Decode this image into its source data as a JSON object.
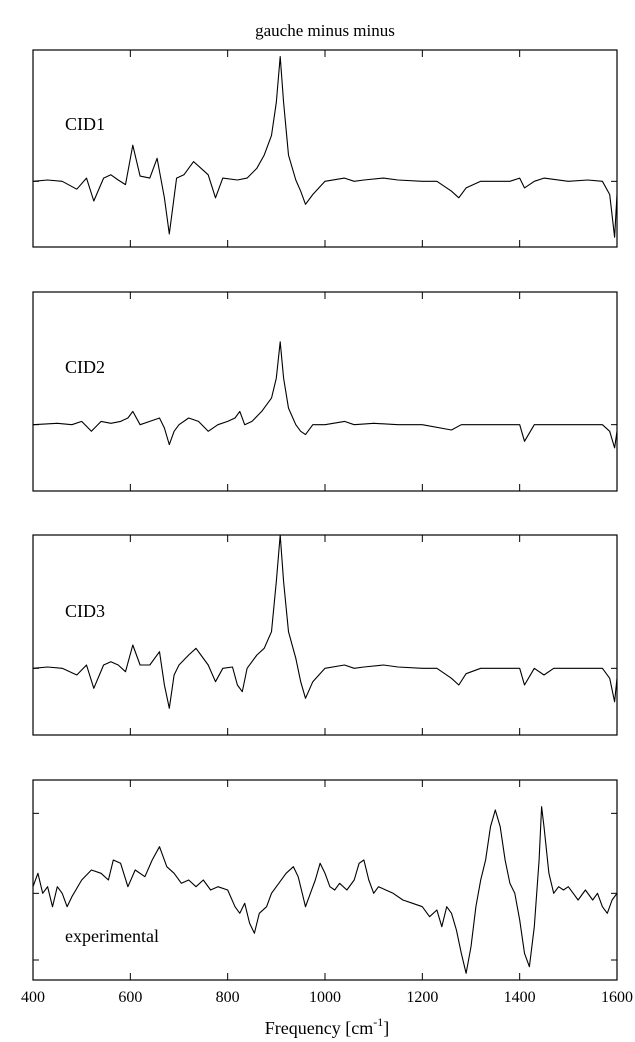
{
  "chart_data": {
    "type": "line",
    "title": "gauche minus minus",
    "xlabel": "Frequency [cm",
    "xlabel_sup": "-1",
    "xlabel_end": "]",
    "xlim": [
      400,
      1600
    ],
    "x_ticks": [
      "400",
      "600",
      "800",
      "1000",
      "1200",
      "1400",
      "1600"
    ],
    "x_tick_values": [
      400,
      600,
      800,
      1000,
      1200,
      1400,
      1600
    ],
    "panels": [
      {
        "label": "CID1",
        "ylim": [
          -1.0,
          2.0
        ],
        "baseline": 0,
        "points": [
          [
            400,
            0
          ],
          [
            430,
            0.02
          ],
          [
            460,
            0
          ],
          [
            490,
            -0.12
          ],
          [
            510,
            0.05
          ],
          [
            525,
            -0.3
          ],
          [
            545,
            0.05
          ],
          [
            560,
            0.1
          ],
          [
            575,
            0.02
          ],
          [
            590,
            -0.05
          ],
          [
            605,
            0.55
          ],
          [
            620,
            0.08
          ],
          [
            640,
            0.05
          ],
          [
            655,
            0.35
          ],
          [
            670,
            -0.25
          ],
          [
            680,
            -0.8
          ],
          [
            695,
            0.05
          ],
          [
            710,
            0.1
          ],
          [
            730,
            0.3
          ],
          [
            745,
            0.2
          ],
          [
            760,
            0.1
          ],
          [
            775,
            -0.25
          ],
          [
            790,
            0.05
          ],
          [
            820,
            0.02
          ],
          [
            840,
            0.05
          ],
          [
            860,
            0.2
          ],
          [
            875,
            0.4
          ],
          [
            890,
            0.7
          ],
          [
            900,
            1.2
          ],
          [
            908,
            1.9
          ],
          [
            915,
            1.2
          ],
          [
            925,
            0.4
          ],
          [
            940,
            0.02
          ],
          [
            950,
            -0.15
          ],
          [
            960,
            -0.35
          ],
          [
            975,
            -0.2
          ],
          [
            1000,
            0
          ],
          [
            1040,
            0.05
          ],
          [
            1060,
            0
          ],
          [
            1080,
            0.02
          ],
          [
            1120,
            0.05
          ],
          [
            1150,
            0.02
          ],
          [
            1200,
            0
          ],
          [
            1230,
            0
          ],
          [
            1260,
            -0.15
          ],
          [
            1275,
            -0.25
          ],
          [
            1290,
            -0.1
          ],
          [
            1320,
            0
          ],
          [
            1350,
            0
          ],
          [
            1380,
            0
          ],
          [
            1400,
            0.05
          ],
          [
            1410,
            -0.1
          ],
          [
            1430,
            0
          ],
          [
            1450,
            0.05
          ],
          [
            1500,
            0
          ],
          [
            1540,
            0.02
          ],
          [
            1570,
            0
          ],
          [
            1585,
            -0.2
          ],
          [
            1595,
            -0.85
          ],
          [
            1600,
            -0.2
          ]
        ]
      },
      {
        "label": "CID2",
        "ylim": [
          -1.0,
          2.0
        ],
        "baseline": 0,
        "points": [
          [
            400,
            0
          ],
          [
            450,
            0.02
          ],
          [
            480,
            0
          ],
          [
            500,
            0.05
          ],
          [
            520,
            -0.1
          ],
          [
            540,
            0.05
          ],
          [
            560,
            0.02
          ],
          [
            580,
            0.05
          ],
          [
            595,
            0.1
          ],
          [
            605,
            0.2
          ],
          [
            620,
            0
          ],
          [
            640,
            0.05
          ],
          [
            660,
            0.1
          ],
          [
            670,
            -0.05
          ],
          [
            680,
            -0.3
          ],
          [
            690,
            -0.1
          ],
          [
            700,
            0
          ],
          [
            720,
            0.1
          ],
          [
            740,
            0.05
          ],
          [
            760,
            -0.1
          ],
          [
            780,
            0
          ],
          [
            800,
            0.05
          ],
          [
            815,
            0.1
          ],
          [
            825,
            0.2
          ],
          [
            835,
            0
          ],
          [
            850,
            0.05
          ],
          [
            870,
            0.2
          ],
          [
            890,
            0.4
          ],
          [
            900,
            0.7
          ],
          [
            908,
            1.25
          ],
          [
            915,
            0.7
          ],
          [
            925,
            0.25
          ],
          [
            940,
            0
          ],
          [
            950,
            -0.1
          ],
          [
            960,
            -0.15
          ],
          [
            975,
            0
          ],
          [
            1000,
            0
          ],
          [
            1040,
            0.05
          ],
          [
            1060,
            0
          ],
          [
            1100,
            0.02
          ],
          [
            1150,
            0
          ],
          [
            1200,
            0
          ],
          [
            1260,
            -0.08
          ],
          [
            1280,
            0
          ],
          [
            1320,
            0
          ],
          [
            1380,
            0
          ],
          [
            1400,
            0
          ],
          [
            1410,
            -0.25
          ],
          [
            1430,
            0
          ],
          [
            1450,
            0
          ],
          [
            1500,
            0
          ],
          [
            1550,
            0
          ],
          [
            1570,
            0
          ],
          [
            1585,
            -0.1
          ],
          [
            1595,
            -0.35
          ],
          [
            1600,
            -0.1
          ]
        ]
      },
      {
        "label": "CID3",
        "ylim": [
          -1.0,
          2.0
        ],
        "baseline": 0,
        "points": [
          [
            400,
            0
          ],
          [
            430,
            0.02
          ],
          [
            460,
            0
          ],
          [
            490,
            -0.1
          ],
          [
            510,
            0.05
          ],
          [
            525,
            -0.3
          ],
          [
            545,
            0.05
          ],
          [
            560,
            0.1
          ],
          [
            575,
            0.05
          ],
          [
            590,
            -0.05
          ],
          [
            605,
            0.35
          ],
          [
            620,
            0.05
          ],
          [
            640,
            0.05
          ],
          [
            660,
            0.25
          ],
          [
            670,
            -0.25
          ],
          [
            680,
            -0.6
          ],
          [
            690,
            -0.1
          ],
          [
            700,
            0.05
          ],
          [
            720,
            0.2
          ],
          [
            735,
            0.3
          ],
          [
            745,
            0.2
          ],
          [
            760,
            0.05
          ],
          [
            775,
            -0.2
          ],
          [
            790,
            0
          ],
          [
            810,
            0.02
          ],
          [
            820,
            -0.25
          ],
          [
            830,
            -0.35
          ],
          [
            840,
            0
          ],
          [
            860,
            0.2
          ],
          [
            875,
            0.3
          ],
          [
            890,
            0.55
          ],
          [
            900,
            1.3
          ],
          [
            908,
            2.0
          ],
          [
            915,
            1.3
          ],
          [
            925,
            0.55
          ],
          [
            940,
            0.15
          ],
          [
            950,
            -0.2
          ],
          [
            960,
            -0.45
          ],
          [
            975,
            -0.2
          ],
          [
            1000,
            0
          ],
          [
            1040,
            0.05
          ],
          [
            1060,
            0
          ],
          [
            1080,
            0.02
          ],
          [
            1120,
            0.05
          ],
          [
            1150,
            0.02
          ],
          [
            1200,
            0
          ],
          [
            1230,
            0
          ],
          [
            1260,
            -0.15
          ],
          [
            1275,
            -0.25
          ],
          [
            1290,
            -0.08
          ],
          [
            1320,
            0
          ],
          [
            1350,
            0
          ],
          [
            1380,
            0
          ],
          [
            1400,
            0
          ],
          [
            1410,
            -0.25
          ],
          [
            1430,
            0
          ],
          [
            1450,
            -0.1
          ],
          [
            1470,
            0
          ],
          [
            1500,
            0
          ],
          [
            1550,
            0
          ],
          [
            1570,
            0
          ],
          [
            1585,
            -0.15
          ],
          [
            1595,
            -0.5
          ],
          [
            1600,
            -0.15
          ]
        ]
      },
      {
        "label": "experimental",
        "ylim": [
          -1.3,
          1.7
        ],
        "baseline": 0,
        "points": [
          [
            400,
            0.1
          ],
          [
            410,
            0.3
          ],
          [
            420,
            0
          ],
          [
            430,
            0.1
          ],
          [
            440,
            -0.2
          ],
          [
            450,
            0.1
          ],
          [
            460,
            0
          ],
          [
            470,
            -0.2
          ],
          [
            480,
            -0.05
          ],
          [
            500,
            0.2
          ],
          [
            520,
            0.35
          ],
          [
            540,
            0.3
          ],
          [
            555,
            0.2
          ],
          [
            565,
            0.5
          ],
          [
            580,
            0.45
          ],
          [
            595,
            0.1
          ],
          [
            610,
            0.35
          ],
          [
            630,
            0.25
          ],
          [
            645,
            0.5
          ],
          [
            660,
            0.7
          ],
          [
            675,
            0.4
          ],
          [
            690,
            0.3
          ],
          [
            705,
            0.15
          ],
          [
            720,
            0.2
          ],
          [
            735,
            0.1
          ],
          [
            750,
            0.2
          ],
          [
            765,
            0.05
          ],
          [
            780,
            0.1
          ],
          [
            800,
            0.05
          ],
          [
            815,
            -0.2
          ],
          [
            825,
            -0.3
          ],
          [
            835,
            -0.15
          ],
          [
            845,
            -0.45
          ],
          [
            855,
            -0.6
          ],
          [
            865,
            -0.3
          ],
          [
            880,
            -0.2
          ],
          [
            890,
            0
          ],
          [
            905,
            0.15
          ],
          [
            920,
            0.3
          ],
          [
            935,
            0.4
          ],
          [
            945,
            0.25
          ],
          [
            960,
            -0.2
          ],
          [
            970,
            0
          ],
          [
            980,
            0.2
          ],
          [
            990,
            0.45
          ],
          [
            1000,
            0.3
          ],
          [
            1010,
            0.1
          ],
          [
            1020,
            0.05
          ],
          [
            1030,
            0.15
          ],
          [
            1045,
            0.05
          ],
          [
            1060,
            0.2
          ],
          [
            1070,
            0.45
          ],
          [
            1080,
            0.5
          ],
          [
            1090,
            0.2
          ],
          [
            1100,
            0
          ],
          [
            1110,
            0.1
          ],
          [
            1125,
            0.05
          ],
          [
            1140,
            0
          ],
          [
            1160,
            -0.1
          ],
          [
            1180,
            -0.15
          ],
          [
            1200,
            -0.2
          ],
          [
            1215,
            -0.35
          ],
          [
            1230,
            -0.25
          ],
          [
            1240,
            -0.5
          ],
          [
            1250,
            -0.2
          ],
          [
            1260,
            -0.3
          ],
          [
            1270,
            -0.55
          ],
          [
            1280,
            -0.9
          ],
          [
            1290,
            -1.2
          ],
          [
            1300,
            -0.8
          ],
          [
            1310,
            -0.2
          ],
          [
            1320,
            0.2
          ],
          [
            1330,
            0.5
          ],
          [
            1340,
            1.0
          ],
          [
            1350,
            1.25
          ],
          [
            1360,
            1.0
          ],
          [
            1370,
            0.5
          ],
          [
            1380,
            0.15
          ],
          [
            1390,
            0
          ],
          [
            1400,
            -0.4
          ],
          [
            1410,
            -0.9
          ],
          [
            1420,
            -1.1
          ],
          [
            1430,
            -0.5
          ],
          [
            1440,
            0.5
          ],
          [
            1445,
            1.3
          ],
          [
            1450,
            1.0
          ],
          [
            1460,
            0.3
          ],
          [
            1470,
            0
          ],
          [
            1480,
            0.1
          ],
          [
            1490,
            0.05
          ],
          [
            1500,
            0.1
          ],
          [
            1510,
            0
          ],
          [
            1520,
            -0.1
          ],
          [
            1535,
            0.05
          ],
          [
            1550,
            -0.1
          ],
          [
            1560,
            0
          ],
          [
            1570,
            -0.2
          ],
          [
            1580,
            -0.3
          ],
          [
            1590,
            -0.1
          ],
          [
            1600,
            0
          ]
        ]
      }
    ]
  }
}
